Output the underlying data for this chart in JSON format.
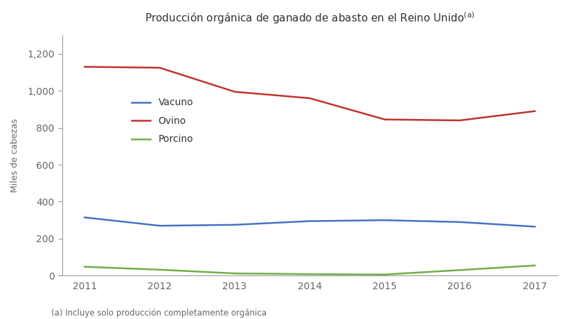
{
  "title": "Producción orgánica de ganado de abasto en el Reino Unido",
  "title_superscript": "(a)",
  "footnote": "(a) Incluye solo producción completamente orgánica",
  "ylabel": "Miles de cabezas",
  "years": [
    2011,
    2012,
    2013,
    2014,
    2015,
    2016,
    2017
  ],
  "vacuno": [
    315,
    270,
    275,
    295,
    300,
    290,
    265
  ],
  "ovino": [
    1130,
    1125,
    995,
    960,
    845,
    840,
    890
  ],
  "porcino": [
    48,
    32,
    12,
    8,
    6,
    30,
    55
  ],
  "color_vacuno": "#4472C4",
  "color_ovino": "#C0312C",
  "color_porcino": "#70AD47",
  "ylim": [
    0,
    1300
  ],
  "yticks": [
    0,
    200,
    400,
    600,
    800,
    1000,
    1200
  ],
  "background_color": "#FFFFFF",
  "legend_labels": [
    "Vacuno",
    "Ovino",
    "Porcino"
  ],
  "linewidth": 1.8,
  "title_fontsize": 11,
  "axis_label_fontsize": 9,
  "tick_fontsize": 10,
  "legend_fontsize": 10,
  "footnote_fontsize": 8.5,
  "text_color": "#333333",
  "axis_color": "#999999",
  "tick_color": "#666666"
}
